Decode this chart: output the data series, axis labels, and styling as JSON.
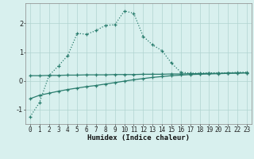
{
  "xlabel": "Humidex (Indice chaleur)",
  "x": [
    0,
    1,
    2,
    3,
    4,
    5,
    6,
    7,
    8,
    9,
    10,
    11,
    12,
    13,
    14,
    15,
    16,
    17,
    18,
    19,
    20,
    21,
    22,
    23
  ],
  "line1": [
    -1.25,
    -0.75,
    0.18,
    0.52,
    0.88,
    1.65,
    1.62,
    1.75,
    1.93,
    1.95,
    2.43,
    2.35,
    1.55,
    1.25,
    1.05,
    0.62,
    0.3,
    0.27,
    0.27,
    0.28,
    0.28,
    0.28,
    0.3,
    0.3
  ],
  "line1_style": "dotted",
  "line2": [
    -0.62,
    -0.5,
    -0.43,
    -0.36,
    -0.3,
    -0.25,
    -0.2,
    -0.16,
    -0.11,
    -0.06,
    -0.01,
    0.04,
    0.08,
    0.12,
    0.15,
    0.18,
    0.2,
    0.22,
    0.23,
    0.24,
    0.25,
    0.26,
    0.27,
    0.28
  ],
  "line2_style": "solid",
  "line3": [
    0.18,
    0.18,
    0.19,
    0.19,
    0.2,
    0.2,
    0.21,
    0.21,
    0.21,
    0.22,
    0.22,
    0.22,
    0.23,
    0.23,
    0.23,
    0.24,
    0.24,
    0.25,
    0.25,
    0.26,
    0.26,
    0.27,
    0.27,
    0.28
  ],
  "line3_style": "solid",
  "line_color": "#2a7d6e",
  "bg_color": "#d8f0ee",
  "grid_color": "#b0d4d0",
  "ylim": [
    -1.5,
    2.7
  ],
  "xlim": [
    -0.5,
    23.5
  ],
  "yticks": [
    -1,
    0,
    1,
    2
  ],
  "xticks": [
    0,
    1,
    2,
    3,
    4,
    5,
    6,
    7,
    8,
    9,
    10,
    11,
    12,
    13,
    14,
    15,
    16,
    17,
    18,
    19,
    20,
    21,
    22,
    23
  ],
  "marker": "+",
  "tick_fontsize": 5.5,
  "xlabel_fontsize": 6.5
}
